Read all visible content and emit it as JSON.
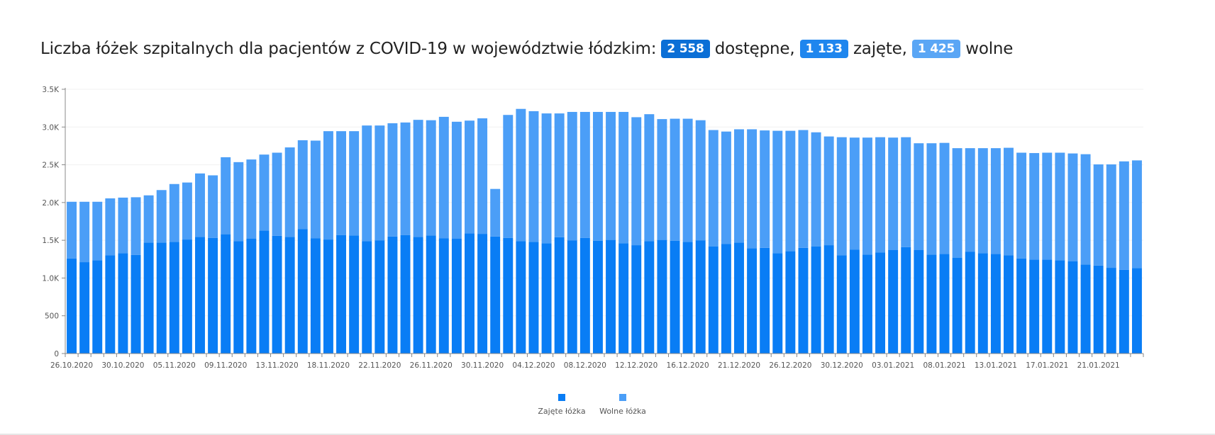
{
  "header": {
    "title_text": "Liczba łóżek szpitalnych dla pacjentów z COVID-19 w województwie łódzkim:",
    "available_value": "2 558",
    "available_label": "dostępne,",
    "occupied_value": "1 133",
    "occupied_label": "zajęte,",
    "free_value": "1 425",
    "free_label": "wolne"
  },
  "colors": {
    "badge_available": "#0b6fd6",
    "badge_occupied": "#1f86ee",
    "badge_free": "#5aa6f5",
    "occupied": "#097df5",
    "free": "#4b9ef7",
    "axis": "#888888",
    "grid": "#f0f0f0"
  },
  "chart_data": {
    "type": "bar",
    "stacked": true,
    "y_ticks": [
      {
        "value": 0,
        "label": "0"
      },
      {
        "value": 500,
        "label": "500"
      },
      {
        "value": 1000,
        "label": "1.0K"
      },
      {
        "value": 1500,
        "label": "1.5K"
      },
      {
        "value": 2000,
        "label": "2.0K"
      },
      {
        "value": 2500,
        "label": "2.5K"
      },
      {
        "value": 3000,
        "label": "3.0K"
      },
      {
        "value": 3500,
        "label": "3.5K"
      }
    ],
    "ylim": [
      0,
      3500
    ],
    "x_ticks": [
      "26.10.2020",
      "30.10.2020",
      "05.11.2020",
      "09.11.2020",
      "13.11.2020",
      "18.11.2020",
      "22.11.2020",
      "26.11.2020",
      "30.11.2020",
      "04.12.2020",
      "08.12.2020",
      "12.12.2020",
      "16.12.2020",
      "21.12.2020",
      "26.12.2020",
      "30.12.2020",
      "03.01.2021",
      "08.01.2021",
      "13.01.2021",
      "17.01.2021",
      "21.01.2021"
    ],
    "x_tick_indices": [
      0,
      4,
      8,
      12,
      16,
      20,
      24,
      28,
      32,
      36,
      40,
      44,
      48,
      52,
      56,
      60,
      64,
      68,
      72,
      76,
      80
    ],
    "legend": {
      "position": "bottom"
    },
    "series": [
      {
        "name": "Zajęte łóżka",
        "values": [
          1260,
          1210,
          1235,
          1300,
          1330,
          1305,
          1470,
          1470,
          1480,
          1510,
          1545,
          1530,
          1580,
          1490,
          1520,
          1630,
          1560,
          1545,
          1650,
          1525,
          1510,
          1570,
          1565,
          1490,
          1500,
          1550,
          1570,
          1545,
          1565,
          1525,
          1520,
          1590,
          1585,
          1550,
          1530,
          1490,
          1480,
          1460,
          1540,
          1500,
          1530,
          1495,
          1505,
          1460,
          1435,
          1490,
          1505,
          1495,
          1480,
          1500,
          1420,
          1450,
          1470,
          1395,
          1400,
          1330,
          1355,
          1400,
          1420,
          1435,
          1300,
          1375,
          1310,
          1340,
          1370,
          1410,
          1370,
          1310,
          1320,
          1270,
          1350,
          1330,
          1320,
          1300,
          1260,
          1245,
          1245,
          1235,
          1220,
          1180,
          1165,
          1135,
          1110,
          1133
        ]
      },
      {
        "name": "Wolne łóżka",
        "values": [
          750,
          800,
          775,
          755,
          735,
          765,
          625,
          695,
          765,
          755,
          840,
          830,
          1020,
          1045,
          1050,
          1005,
          1100,
          1185,
          1175,
          1295,
          1435,
          1375,
          1380,
          1530,
          1520,
          1500,
          1490,
          1550,
          1525,
          1610,
          1550,
          1495,
          1530,
          630,
          1630,
          1750,
          1730,
          1720,
          1640,
          1700,
          1670,
          1705,
          1695,
          1740,
          1695,
          1680,
          1600,
          1615,
          1630,
          1590,
          1540,
          1490,
          1500,
          1575,
          1555,
          1620,
          1595,
          1560,
          1510,
          1440,
          1565,
          1485,
          1550,
          1525,
          1490,
          1455,
          1415,
          1475,
          1470,
          1450,
          1370,
          1390,
          1400,
          1425,
          1400,
          1410,
          1415,
          1425,
          1430,
          1460,
          1340,
          1370,
          1435,
          1425
        ]
      }
    ]
  }
}
